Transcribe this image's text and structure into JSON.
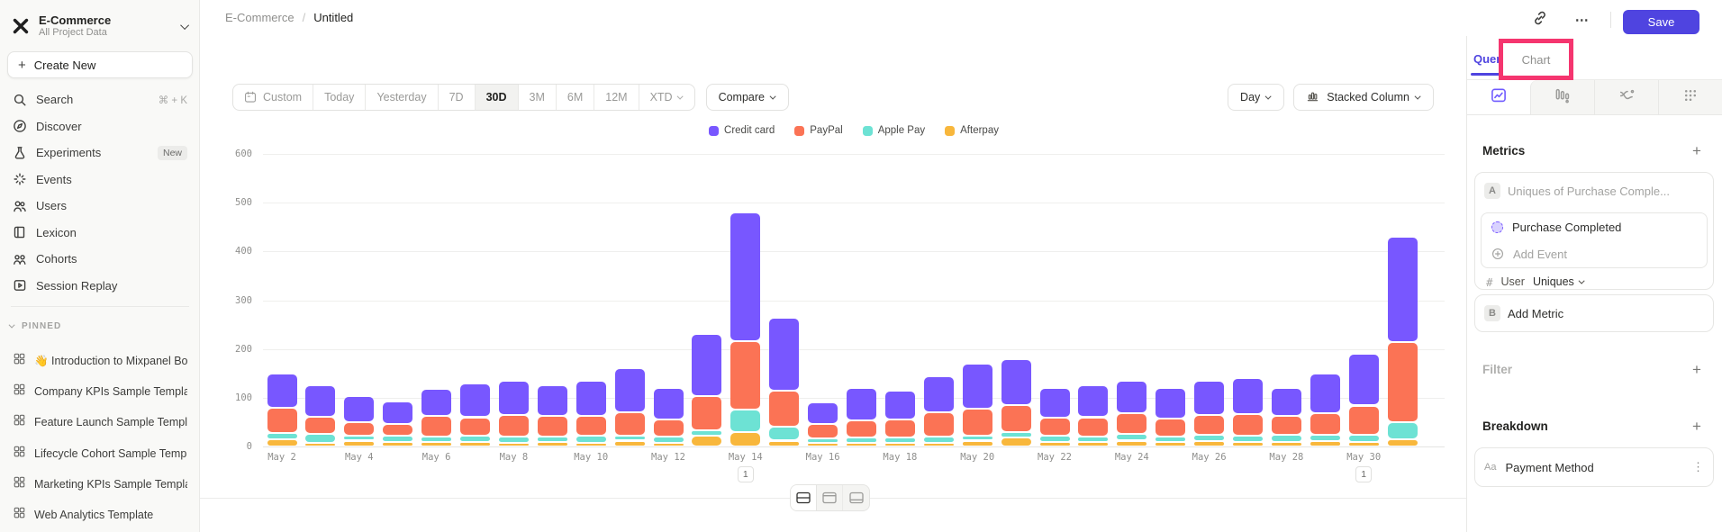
{
  "colors": {
    "accent": "#4f44e0",
    "highlight_box": "#f5356f",
    "sidebar_bg": "#f9f9f7"
  },
  "sidebar": {
    "project": {
      "name": "E-Commerce",
      "subtitle": "All Project Data"
    },
    "create_new_label": "Create New",
    "nav": [
      {
        "label": "Search",
        "icon": "search",
        "shortcut": "⌘ + K"
      },
      {
        "label": "Discover",
        "icon": "compass"
      },
      {
        "label": "Experiments",
        "icon": "flask",
        "badge": "New"
      },
      {
        "label": "Events",
        "icon": "spark"
      },
      {
        "label": "Users",
        "icon": "users"
      },
      {
        "label": "Lexicon",
        "icon": "book"
      },
      {
        "label": "Cohorts",
        "icon": "people"
      },
      {
        "label": "Session Replay",
        "icon": "replay"
      }
    ],
    "pinned_header": "PINNED",
    "pinned": [
      {
        "label": "👋 Introduction to Mixpanel Board"
      },
      {
        "label": "Company KPIs Sample Template"
      },
      {
        "label": "Feature Launch Sample Template"
      },
      {
        "label": "Lifecycle Cohort Sample Template"
      },
      {
        "label": "Marketing KPIs Sample Template"
      },
      {
        "label": "Web Analytics Template"
      }
    ]
  },
  "header": {
    "breadcrumb_root": "E-Commerce",
    "breadcrumb_separator": "/",
    "breadcrumb_leaf": "Untitled",
    "save_label": "Save",
    "more_label": "⋯"
  },
  "toolbar": {
    "date_ranges": [
      "Custom",
      "Today",
      "Yesterday",
      "7D",
      "30D",
      "3M",
      "6M",
      "12M",
      "XTD"
    ],
    "active_range": "30D",
    "compare_label": "Compare",
    "granularity_label": "Day",
    "chart_type_label": "Stacked Column"
  },
  "chart_data": {
    "type": "bar",
    "subtype": "stacked_column",
    "title": "",
    "xlabel": "",
    "ylabel": "",
    "ylim": [
      0,
      600
    ],
    "ytick_step": 100,
    "x_ticks_every": 2,
    "legend_position": "top-center",
    "grid": true,
    "categories": [
      "May 2",
      "May 3",
      "May 4",
      "May 5",
      "May 6",
      "May 7",
      "May 8",
      "May 9",
      "May 10",
      "May 11",
      "May 12",
      "May 13",
      "May 14",
      "May 15",
      "May 16",
      "May 17",
      "May 18",
      "May 19",
      "May 20",
      "May 21",
      "May 22",
      "May 23",
      "May 24",
      "May 25",
      "May 26",
      "May 27",
      "May 28",
      "May 29",
      "May 30",
      "May 31"
    ],
    "series": [
      {
        "name": "Credit card",
        "color": "#7857ff",
        "values": [
          70,
          64,
          53,
          45,
          56,
          70,
          70,
          63,
          72,
          90,
          65,
          126,
          264,
          150,
          44,
          67,
          59,
          75,
          93,
          95,
          60,
          65,
          67,
          62,
          71,
          73,
          58,
          81,
          106,
          215
        ]
      },
      {
        "name": "PayPal",
        "color": "#fb7355",
        "values": [
          52,
          35,
          28,
          25,
          42,
          38,
          45,
          42,
          40,
          48,
          35,
          70,
          140,
          75,
          30,
          35,
          38,
          50,
          55,
          55,
          38,
          40,
          42,
          38,
          40,
          45,
          38,
          45,
          60,
          165
        ]
      },
      {
        "name": "Apple Pay",
        "color": "#6de2d4",
        "values": [
          13,
          18,
          10,
          12,
          10,
          12,
          12,
          10,
          15,
          10,
          12,
          12,
          46,
          28,
          8,
          10,
          10,
          12,
          10,
          12,
          12,
          10,
          14,
          10,
          12,
          12,
          14,
          12,
          14,
          35
        ]
      },
      {
        "name": "Afterpay",
        "color": "#f8b73c",
        "values": [
          15,
          8,
          12,
          10,
          10,
          10,
          8,
          10,
          8,
          12,
          8,
          22,
          30,
          12,
          8,
          8,
          8,
          8,
          12,
          18,
          10,
          10,
          12,
          10,
          12,
          10,
          10,
          12,
          10,
          15
        ]
      }
    ],
    "annotations": [
      {
        "category": "May 14",
        "label": "1"
      },
      {
        "category": "May 30",
        "label": "1"
      }
    ]
  },
  "right_panel": {
    "tab_query": "Query",
    "tab_chart": "Chart",
    "active_tab": "Query",
    "metrics_title": "Metrics",
    "metric_a": {
      "badge": "A",
      "summary": "Uniques of Purchase Comple...",
      "event": "Purchase Completed",
      "add_event_label": "Add Event",
      "measure_prefix": "#",
      "measure_entity": "User",
      "measure_type": "Uniques"
    },
    "metric_b": {
      "badge": "B",
      "label": "Add Metric"
    },
    "filter_title": "Filter",
    "breakdown_title": "Breakdown",
    "breakdown_item": {
      "prefix": "Aa",
      "label": "Payment Method"
    }
  }
}
